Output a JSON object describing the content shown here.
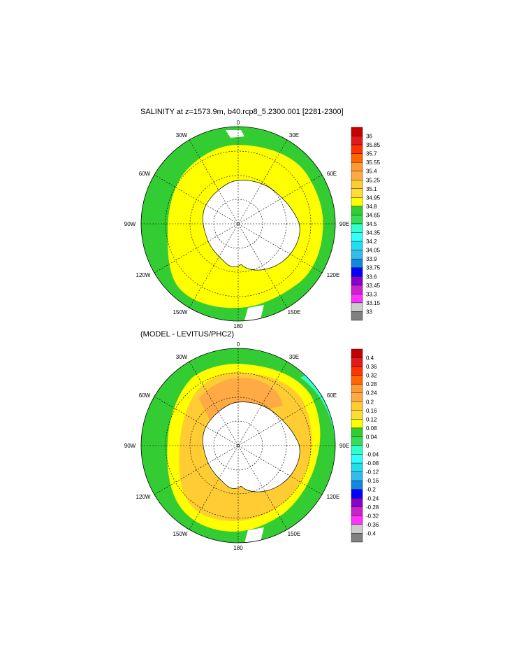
{
  "panels": [
    {
      "title": "SALINITY at z=1573.9m, b40.rcp8_5.2300.001 [2281-2300]",
      "lon_labels": [
        "0",
        "30E",
        "60E",
        "90E",
        "120E",
        "150E",
        "180",
        "150W",
        "120W",
        "90W",
        "60W",
        "30W"
      ],
      "colorbar": {
        "labels": [
          "36",
          "35.85",
          "35.7",
          "35.55",
          "35.4",
          "35.25",
          "35.1",
          "34.95",
          "34.8",
          "34.65",
          "34.5",
          "34.35",
          "34.2",
          "34.05",
          "33.9",
          "33.75",
          "33.6",
          "33.45",
          "33.3",
          "33.15",
          "33"
        ],
        "colors": [
          "#c40000",
          "#e21a1a",
          "#ff3300",
          "#ff6600",
          "#ff9933",
          "#ffaa44",
          "#ffcc33",
          "#ffdd33",
          "#ffff00",
          "#33cc33",
          "#33dd55",
          "#33ffcc",
          "#33ffff",
          "#22ddee",
          "#33bbee",
          "#1188dd",
          "#0000ff",
          "#8800cc",
          "#cc22cc",
          "#ff33ff",
          "#cccccc",
          "#808080"
        ]
      }
    },
    {
      "title": "(MODEL - LEVITUS/PHC2)",
      "lon_labels": [
        "0",
        "30E",
        "60E",
        "90E",
        "120E",
        "150E",
        "180",
        "150W",
        "120W",
        "90W",
        "60W",
        "30W"
      ],
      "colorbar": {
        "labels": [
          "0.4",
          "0.36",
          "0.32",
          "0.28",
          "0.24",
          "0.2",
          "0.16",
          "0.12",
          "0.08",
          "0.04",
          "0",
          "-0.04",
          "-0.08",
          "-0.12",
          "-0.16",
          "-0.2",
          "-0.24",
          "-0.28",
          "-0.32",
          "-0.36",
          "-0.4"
        ],
        "colors": [
          "#c40000",
          "#e21a1a",
          "#ff3300",
          "#ff6600",
          "#ff9933",
          "#ffaa44",
          "#ffcc33",
          "#ffdd33",
          "#ffff00",
          "#33cc33",
          "#33dd55",
          "#33ffcc",
          "#33ffff",
          "#22ddee",
          "#33bbee",
          "#1188dd",
          "#0000ff",
          "#8800cc",
          "#cc22cc",
          "#ff33ff",
          "#cccccc",
          "#808080"
        ]
      }
    }
  ]
}
